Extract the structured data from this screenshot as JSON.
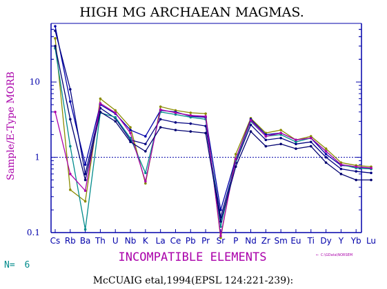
{
  "chart_data": {
    "type": "line",
    "title": "HIGH MG ARCHAEAN MAGMAS.",
    "ylabel": "Sample/E-Type MORB",
    "xlabel": "INCOMPATIBLE ELEMENTS",
    "yscale": "log",
    "ylim": [
      0.1,
      60
    ],
    "ytick_labels": [
      "0.1",
      "1",
      "10"
    ],
    "ytick_values": [
      0.1,
      1,
      10
    ],
    "reference_line": 1,
    "categories": [
      "Cs",
      "Rb",
      "Ba",
      "Th",
      "U",
      "Nb",
      "K",
      "La",
      "Ce",
      "Pb",
      "Pr",
      "Sr",
      "P",
      "Nd",
      "Zr",
      "Sm",
      "Eu",
      "Ti",
      "Dy",
      "Y",
      "Yb",
      "Lu"
    ],
    "series": [
      {
        "color": "#8a8a00",
        "values": [
          38,
          0.37,
          0.26,
          6.0,
          4.2,
          2.5,
          0.45,
          4.7,
          4.2,
          3.9,
          3.8,
          0.085,
          1.1,
          3.3,
          2.1,
          2.3,
          1.7,
          1.9,
          1.3,
          0.85,
          0.78,
          0.75
        ]
      },
      {
        "color": "#0000aa",
        "values": [
          55,
          5.5,
          0.8,
          5.0,
          3.8,
          2.3,
          1.9,
          4.2,
          4.0,
          3.5,
          3.4,
          0.2,
          0.95,
          3.2,
          2.0,
          2.1,
          1.7,
          1.8,
          1.1,
          0.78,
          0.75,
          0.7
        ]
      },
      {
        "color": "#000080",
        "values": [
          48,
          8.0,
          0.6,
          4.5,
          3.3,
          1.7,
          1.5,
          3.2,
          2.9,
          2.8,
          2.6,
          0.16,
          0.85,
          2.7,
          1.7,
          1.8,
          1.5,
          1.6,
          1.0,
          0.7,
          0.65,
          0.62
        ]
      },
      {
        "color": "#008b8b",
        "values": [
          28,
          1.4,
          0.11,
          3.9,
          3.4,
          1.8,
          0.62,
          4.0,
          3.7,
          3.4,
          3.2,
          0.12,
          0.9,
          3.0,
          1.9,
          2.0,
          1.6,
          1.8,
          1.2,
          0.8,
          0.72,
          0.7
        ]
      },
      {
        "color": "#aa00aa",
        "values": [
          4.0,
          0.6,
          0.36,
          5.2,
          3.9,
          2.1,
          0.48,
          4.3,
          3.9,
          3.6,
          3.5,
          0.09,
          0.95,
          3.1,
          1.9,
          2.1,
          1.7,
          1.8,
          1.2,
          0.8,
          0.75,
          0.72
        ]
      },
      {
        "color": "#000070",
        "values": [
          30,
          3.2,
          0.5,
          4.0,
          3.0,
          1.6,
          1.2,
          2.5,
          2.3,
          2.2,
          2.1,
          0.14,
          0.75,
          2.2,
          1.4,
          1.5,
          1.3,
          1.4,
          0.85,
          0.6,
          0.5,
          0.5
        ]
      }
    ]
  },
  "footer": {
    "n_label": "N=",
    "n_value": "6",
    "citation": "McCUAIG etal,1994(EPSL 124:221-239):",
    "path_text": "C:\\GData\\NORSEM"
  },
  "colors": {
    "axis": "#0000aa",
    "title": "#000000",
    "ylabel": "#aa00aa",
    "xlabel": "#aa00aa",
    "n_label": "#008b8b"
  }
}
